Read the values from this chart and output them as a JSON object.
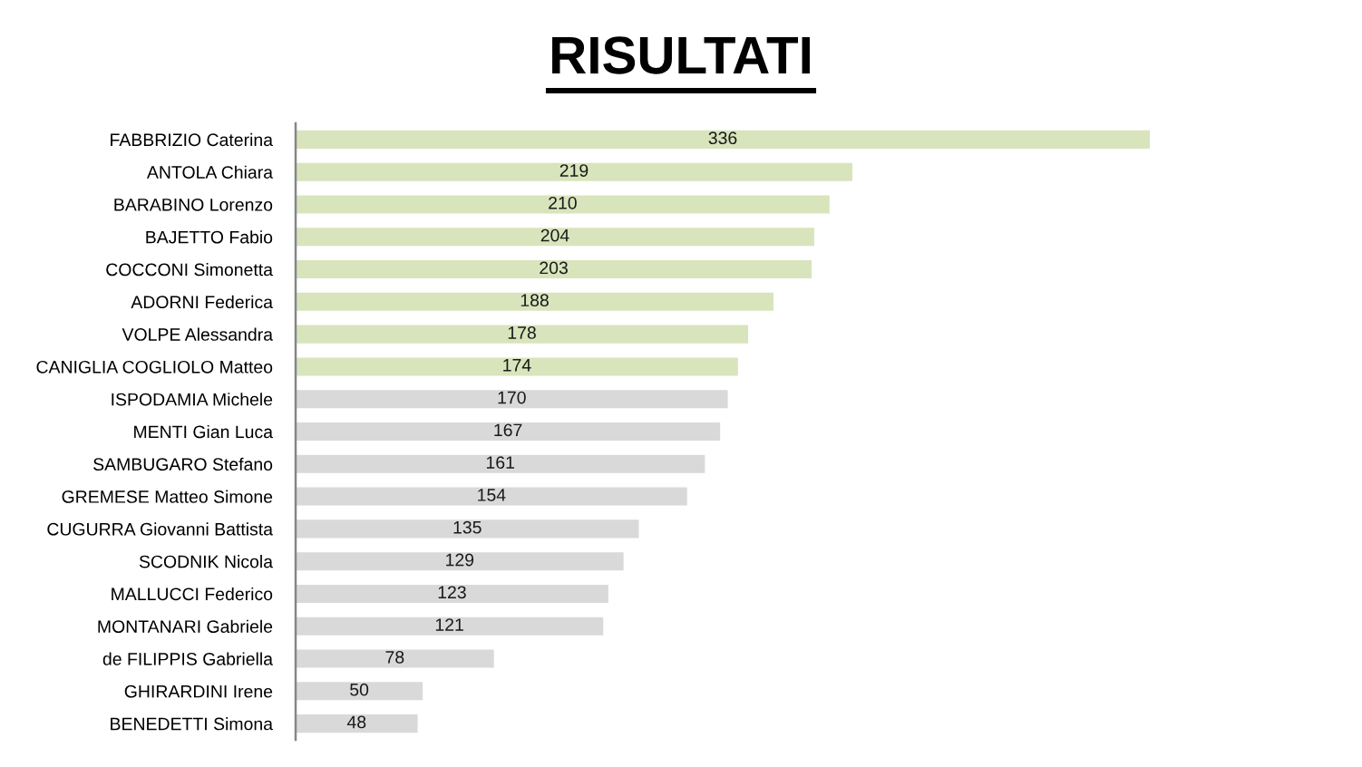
{
  "chart_data": {
    "type": "bar",
    "orientation": "horizontal",
    "title": "RISULTATI",
    "categories": [
      "FABBRIZIO Caterina",
      "ANTOLA Chiara",
      "BARABINO Lorenzo",
      "BAJETTO Fabio",
      "COCCONI Simonetta",
      "ADORNI Federica",
      "VOLPE Alessandra",
      "CANIGLIA COGLIOLO Matteo",
      "ISPODAMIA Michele",
      "MENTI Gian Luca",
      "SAMBUGARO Stefano",
      "GREMESE Matteo Simone",
      "CUGURRA Giovanni Battista",
      "SCODNIK Nicola",
      "MALLUCCI Federico",
      "MONTANARI Gabriele",
      "de FILIPPIS Gabriella",
      "GHIRARDINI Irene",
      "BENEDETTI Simona"
    ],
    "values": [
      336,
      219,
      210,
      204,
      203,
      188,
      178,
      174,
      170,
      167,
      161,
      154,
      135,
      129,
      123,
      121,
      78,
      50,
      48
    ],
    "colors": [
      "#d8e4bc",
      "#d8e4bc",
      "#d8e4bc",
      "#d8e4bc",
      "#d8e4bc",
      "#d8e4bc",
      "#d8e4bc",
      "#d8e4bc",
      "#d9d9d9",
      "#d9d9d9",
      "#d9d9d9",
      "#d9d9d9",
      "#d9d9d9",
      "#d9d9d9",
      "#d9d9d9",
      "#d9d9d9",
      "#d9d9d9",
      "#d9d9d9",
      "#d9d9d9"
    ],
    "data_labels": true,
    "tick_labels": "y",
    "grid": false,
    "legend": false
  }
}
